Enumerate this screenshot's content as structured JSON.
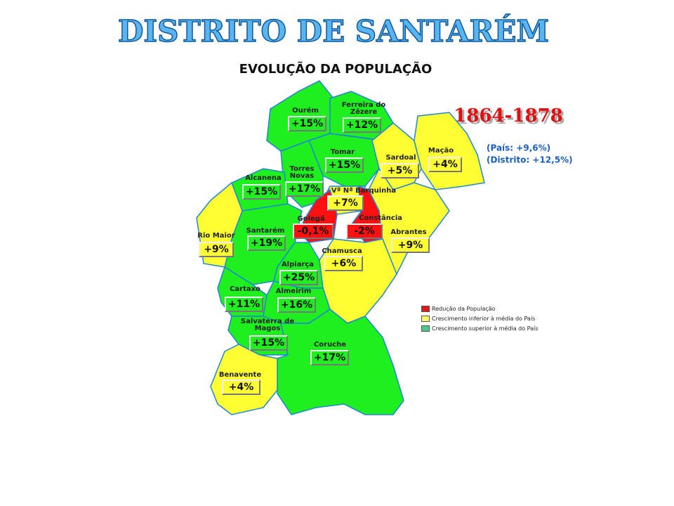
{
  "header": {
    "title": "DISTRITO DE SANTARÉM",
    "subtitle": "EVOLUÇÃO DA POPULAÇÃO",
    "period": "1864-1878",
    "country": "(País: +9,6%)",
    "district": "(Distrito: +12,5%)"
  },
  "municipalities": [
    {
      "name": "Ourém",
      "value": "+15%",
      "color": "#1fee1f"
    },
    {
      "name": "Ferreira do Zêzere",
      "value": "+12%",
      "color": "#1fee1f"
    },
    {
      "name": "Tomar",
      "value": "+15%",
      "color": "#1fee1f"
    },
    {
      "name": "Sardoal",
      "value": "+5%",
      "color": "#ffff33"
    },
    {
      "name": "Mação",
      "value": "+4%",
      "color": "#ffff33"
    },
    {
      "name": "Torres Novas",
      "value": "+17%",
      "color": "#1fee1f"
    },
    {
      "name": "Alcanena",
      "value": "+15%",
      "color": "#1fee1f"
    },
    {
      "name": "Vª Nª Barquinha",
      "value": "+7%",
      "color": "#ffff33"
    },
    {
      "name": "Golegã",
      "value": "-0,1%",
      "color": "#ff1010"
    },
    {
      "name": "Constância",
      "value": "-2%",
      "color": "#ff1010"
    },
    {
      "name": "Santarém",
      "value": "+19%",
      "color": "#1fee1f"
    },
    {
      "name": "Rio Maior",
      "value": "+9%",
      "color": "#ffff33"
    },
    {
      "name": "Abrantes",
      "value": "+9%",
      "color": "#ffff33"
    },
    {
      "name": "Chamusca",
      "value": "+6%",
      "color": "#ffff33"
    },
    {
      "name": "Alpiarça",
      "value": "+25%",
      "color": "#1fee1f"
    },
    {
      "name": "Cartaxo",
      "value": "+11%",
      "color": "#1fee1f"
    },
    {
      "name": "Almeirim",
      "value": "+16%",
      "color": "#1fee1f"
    },
    {
      "name": "Salvaterra de Magos",
      "value": "+15%",
      "color": "#1fee1f"
    },
    {
      "name": "Coruche",
      "value": "+17%",
      "color": "#1fee1f"
    },
    {
      "name": "Benavente",
      "value": "+4%",
      "color": "#ffff33"
    }
  ],
  "legend": [
    {
      "label": "Redução da População",
      "color": "#e01818"
    },
    {
      "label": "Crescimento  inferior à média do País",
      "color": "#ffff66"
    },
    {
      "label": "Crescimento  superior à média do País",
      "color": "#44cc88"
    }
  ]
}
